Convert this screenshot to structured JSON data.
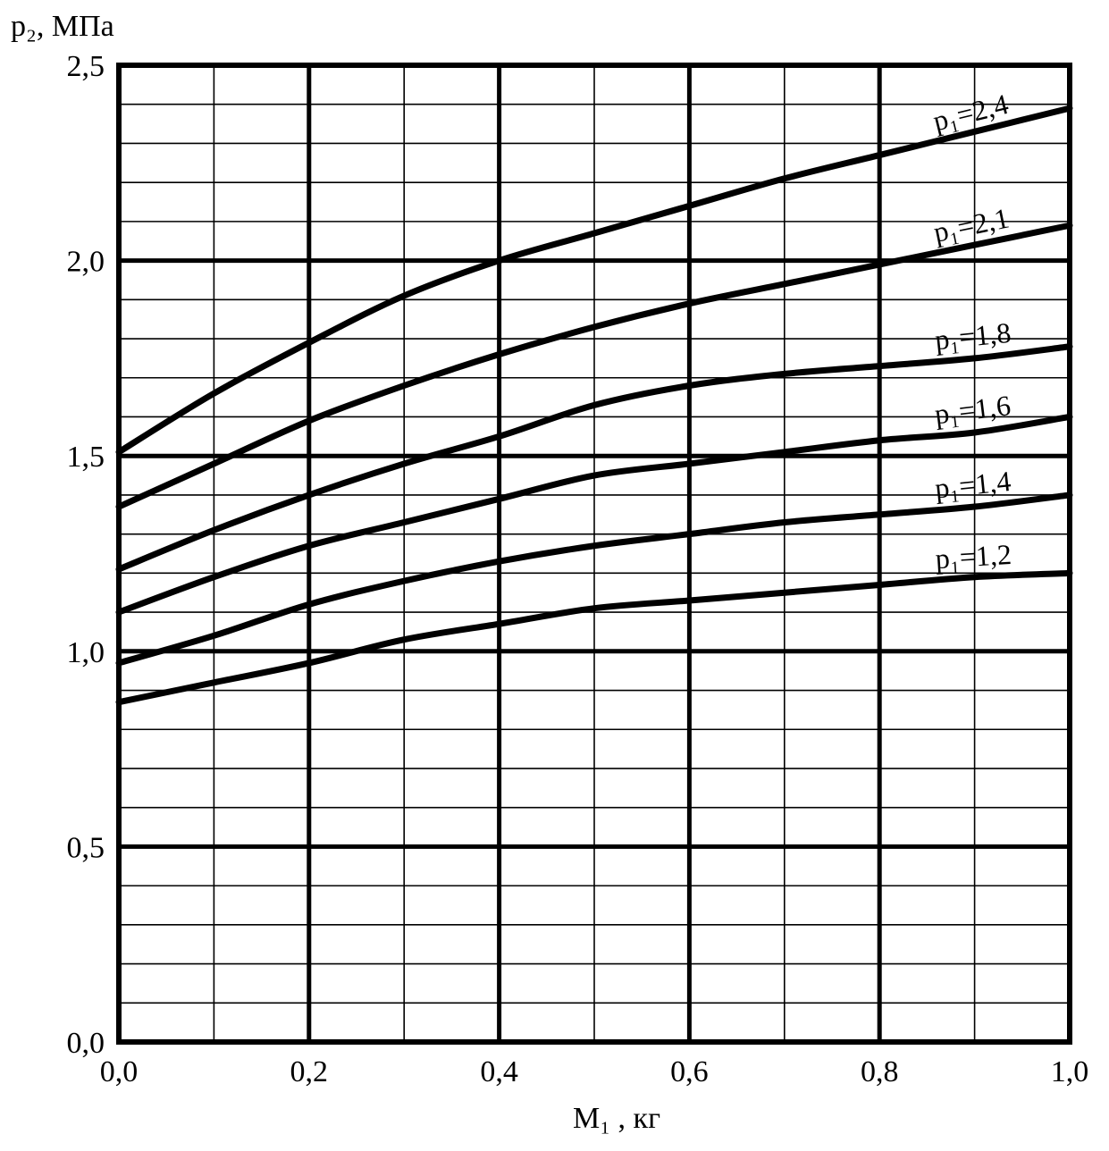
{
  "chart_data": {
    "type": "line",
    "title": "",
    "xlabel": "М₁ , кг",
    "ylabel": "p₂, МПа",
    "xlim": [
      0.0,
      1.0
    ],
    "ylim": [
      0.0,
      2.5
    ],
    "x_ticks": [
      {
        "value": 0.0,
        "label": "0,0"
      },
      {
        "value": 0.2,
        "label": "0,2"
      },
      {
        "value": 0.4,
        "label": "0,4"
      },
      {
        "value": 0.6,
        "label": "0,6"
      },
      {
        "value": 0.8,
        "label": "0,8"
      },
      {
        "value": 1.0,
        "label": "1,0"
      }
    ],
    "y_ticks": [
      {
        "value": 0.0,
        "label": "0,0"
      },
      {
        "value": 0.5,
        "label": "0,5"
      },
      {
        "value": 1.0,
        "label": "1,0"
      },
      {
        "value": 1.5,
        "label": "1,5"
      },
      {
        "value": 2.0,
        "label": "2,0"
      },
      {
        "value": 2.5,
        "label": "2,5"
      }
    ],
    "grid": {
      "x_minor_step": 0.1,
      "y_minor_step": 0.1,
      "major_lines_bold": true
    },
    "x": [
      0.0,
      0.1,
      0.2,
      0.3,
      0.4,
      0.5,
      0.6,
      0.7,
      0.8,
      0.9,
      1.0
    ],
    "series": [
      {
        "name": "p₁=2,4",
        "values": [
          1.51,
          1.66,
          1.79,
          1.91,
          2.0,
          2.07,
          2.14,
          2.21,
          2.27,
          2.33,
          2.39
        ]
      },
      {
        "name": "p₁=2,1",
        "values": [
          1.37,
          1.48,
          1.59,
          1.68,
          1.76,
          1.83,
          1.89,
          1.94,
          1.99,
          2.04,
          2.09
        ]
      },
      {
        "name": "p₁=1,8",
        "values": [
          1.21,
          1.31,
          1.4,
          1.48,
          1.55,
          1.63,
          1.68,
          1.71,
          1.73,
          1.75,
          1.78
        ]
      },
      {
        "name": "p₁=1,6",
        "values": [
          1.1,
          1.19,
          1.27,
          1.33,
          1.39,
          1.45,
          1.48,
          1.51,
          1.54,
          1.56,
          1.6
        ]
      },
      {
        "name": "p₁=1,4",
        "values": [
          0.97,
          1.04,
          1.12,
          1.18,
          1.23,
          1.27,
          1.3,
          1.33,
          1.35,
          1.37,
          1.4
        ]
      },
      {
        "name": "p₁=1,2",
        "values": [
          0.87,
          0.92,
          0.97,
          1.03,
          1.07,
          1.11,
          1.13,
          1.15,
          1.17,
          1.19,
          1.2
        ]
      }
    ]
  }
}
